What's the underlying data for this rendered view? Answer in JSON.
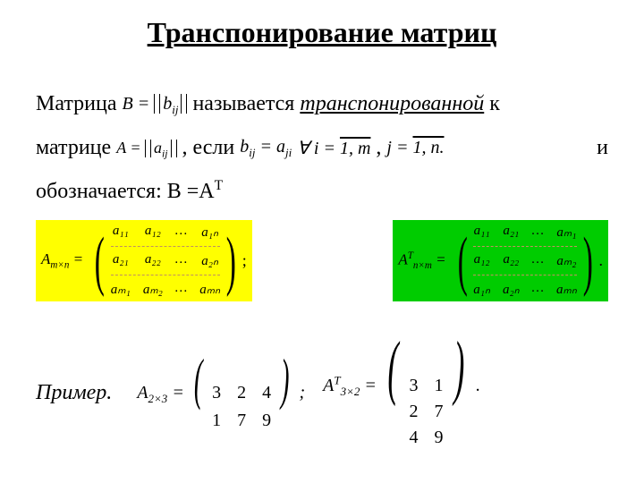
{
  "title": "Транспонирование матриц",
  "line1": {
    "w1": "Матрица",
    "math_B": "B =",
    "math_Bexpr": "b",
    "math_Bsub": "ij",
    "w2": "называется",
    "w3": "транспонированной",
    "w4": "к"
  },
  "line2": {
    "w1": "матрице",
    "math_A": "A =",
    "math_Aexpr": "a",
    "math_Asub": "ij",
    "comma": ",",
    "w2": "если",
    "cond": "b",
    "cond_sub_ij": "ij",
    "eq": "= a",
    "cond_sub_ji": "ji",
    "forall": "∀",
    "ieq": "i =",
    "irange": "1, m",
    "c2": ",",
    "jeq": "j =",
    "jrange": "1, n.",
    "w3": "и"
  },
  "notation": "обозначается: B =A",
  "notation_sup": "T",
  "matrixA": {
    "label_pre": "A",
    "label_sub": "m×n",
    "eq": " =",
    "rows": [
      [
        "a₁₁",
        "a₁₂",
        "…",
        "a₁ₙ"
      ],
      [
        "a₂₁",
        "a₂₂",
        "…",
        "a₂ₙ"
      ],
      [
        "aₘ₁",
        "aₘ₂",
        "…",
        "aₘₙ"
      ]
    ],
    "trail": ";"
  },
  "matrixAT": {
    "label_pre": "A",
    "label_sup": "T",
    "label_sub": "n×m",
    "eq": " =",
    "rows": [
      [
        "a₁₁",
        "a₂₁",
        "…",
        "aₘ₁"
      ],
      [
        "a₁₂",
        "a₂₂",
        "…",
        "aₘ₂"
      ],
      [
        "a₁ₙ",
        "a₂ₙ",
        "…",
        "aₘₙ"
      ]
    ],
    "trail": "."
  },
  "example": {
    "label": "Пример.",
    "A_label": "A",
    "A_sub": "2×3",
    "eq": " =",
    "A_rows": [
      [
        "3",
        "2",
        "4"
      ],
      [
        "1",
        "7",
        "9"
      ]
    ],
    "sep": ";",
    "AT_label": "A",
    "AT_sup": "T",
    "AT_sub": "3×2",
    "AT_rows": [
      [
        "3",
        "1"
      ],
      [
        "2",
        "7"
      ],
      [
        "4",
        "9"
      ]
    ],
    "end": "."
  },
  "colors": {
    "yellow": "#ffff00",
    "green": "#00cc00",
    "background": "#ffffff",
    "text": "#000000"
  }
}
